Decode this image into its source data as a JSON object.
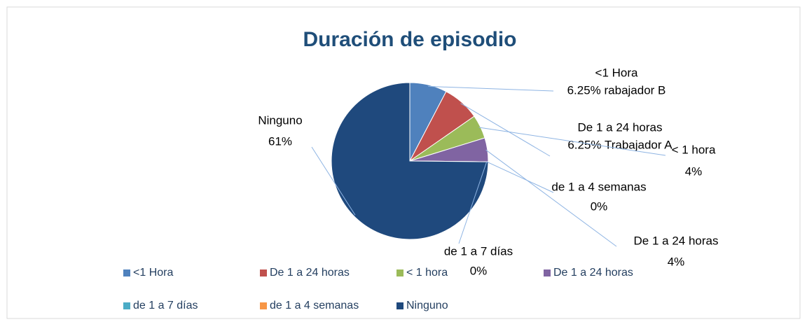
{
  "chart_data": {
    "type": "pie",
    "title": "Duración de episodio",
    "categories": [
      "<1 Hora",
      "De 1 a 24 horas",
      "< 1 hora",
      "De 1 a 24 horas",
      "de 1 a 7 días",
      "de 1 a 4 semanas",
      "Ninguno"
    ],
    "values": [
      6.25,
      6.25,
      4,
      4,
      0,
      0,
      61
    ],
    "value_labels": [
      "6.25% rabajador B",
      "6.25% Trabajador A",
      "4%",
      "4%",
      "0%",
      "0%",
      "61%"
    ],
    "colors": [
      "#4f81bd",
      "#c0504d",
      "#9bbb59",
      "#8064a2",
      "#4bacc6",
      "#f79646",
      "#1f497d"
    ],
    "legend": "bottom"
  }
}
